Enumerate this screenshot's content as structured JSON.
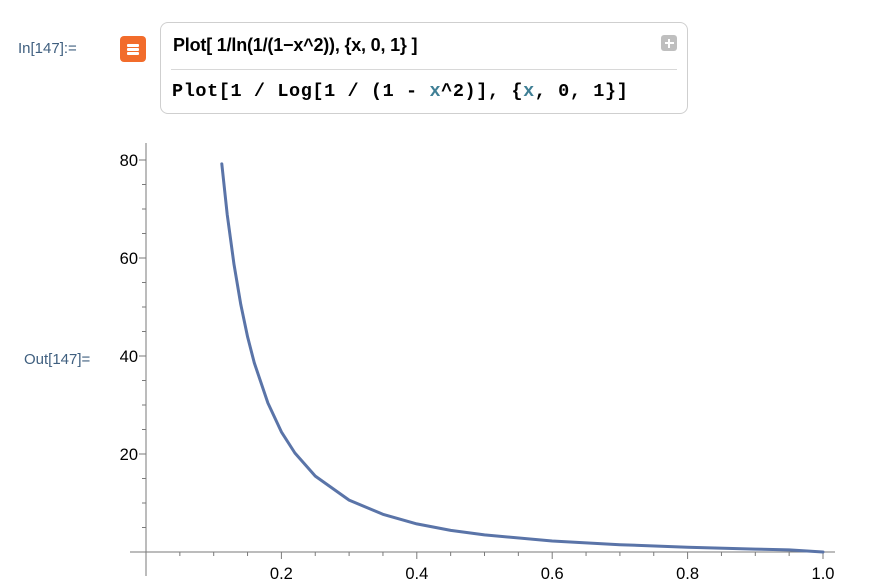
{
  "cell": {
    "in_label": "In[147]:=",
    "out_label": "Out[147]=",
    "natural_language_query": "Plot[ 1/ln(1/(1−x^2)), {x, 0, 1} ]",
    "code": {
      "part1": "Plot[1 / Log[1 / (1 - ",
      "var": "x",
      "part2": "^2)], {",
      "var2": "x",
      "part3": ", 0, 1}]"
    }
  },
  "icons": {
    "assistant": "wolfram-alpha-equals-icon",
    "expand": "plus-icon"
  },
  "colors": {
    "curve": "#5a74a8",
    "label": "#3f5f7f",
    "assistant_icon": "#f26c2b"
  },
  "chart_data": {
    "type": "line",
    "function": "1/Log[1/(1 - x^2)]",
    "xlim": [
      0,
      1
    ],
    "ylim": [
      0,
      80
    ],
    "x_ticks": [
      0.2,
      0.4,
      0.6,
      0.8,
      1.0
    ],
    "x_tick_labels": [
      "0.2",
      "0.4",
      "0.6",
      "0.8",
      "1.0"
    ],
    "y_ticks": [
      20,
      40,
      60,
      80
    ],
    "y_tick_labels": [
      "20",
      "40",
      "60",
      "80"
    ],
    "series": [
      {
        "x": [
          0.112,
          0.12,
          0.13,
          0.14,
          0.15,
          0.16,
          0.18,
          0.2,
          0.22,
          0.25,
          0.3,
          0.35,
          0.4,
          0.45,
          0.5,
          0.6,
          0.7,
          0.8,
          0.9,
          0.95,
          1.0
        ],
        "y": [
          79.2,
          68.9,
          58.7,
          50.5,
          43.9,
          38.6,
          30.4,
          24.5,
          20.2,
          15.5,
          10.6,
          7.7,
          5.74,
          4.41,
          3.48,
          2.24,
          1.48,
          0.98,
          0.6,
          0.43,
          0
        ]
      }
    ]
  }
}
